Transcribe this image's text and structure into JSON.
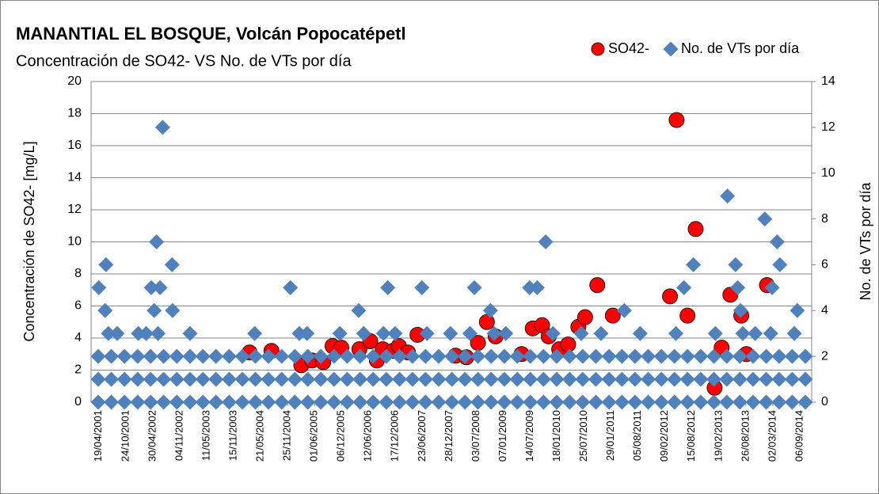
{
  "chart_data": {
    "type": "scatter",
    "title": "MANANTIAL EL BOSQUE, Volcán Popocatépetl",
    "subtitle": "Concentración de SO42- VS No. de VTs por día",
    "y_label": "Concentración de SO42-  [mg/L]",
    "y2_label": "No. de VTs por día",
    "xlim": [
      "24/02/2001",
      "28/11/2014"
    ],
    "xticks": [
      "19/04/2001",
      "24/10/2001",
      "30/04/2002",
      "04/11/2002",
      "11/05/2003",
      "15/11/2003",
      "21/05/2004",
      "25/11/2004",
      "01/06/2005",
      "06/12/2005",
      "12/06/2006",
      "17/12/2006",
      "23/06/2007",
      "28/12/2007",
      "03/07/2008",
      "07/01/2009",
      "14/07/2009",
      "18/01/2010",
      "25/07/2010",
      "29/01/2011",
      "05/08/2011",
      "09/02/2012",
      "15/08/2012",
      "19/02/2013",
      "26/08/2013",
      "02/03/2014",
      "06/09/2014"
    ],
    "ylim": [
      0,
      20
    ],
    "yticks": [
      0,
      2,
      4,
      6,
      8,
      10,
      12,
      14,
      16,
      18,
      20
    ],
    "y2lim": [
      0,
      14
    ],
    "y2ticks": [
      0,
      2,
      4,
      6,
      8,
      10,
      12,
      14
    ],
    "grid": true,
    "legend": "top-right",
    "series": [
      {
        "name": "SO42-",
        "color": "#ff0000",
        "marker": "circle",
        "x": [
          "05/03/2004",
          "05/08/2004",
          "01/03/2005",
          "15/05/2005",
          "01/08/2005",
          "05/10/2005",
          "05/12/2005",
          "10/04/2006",
          "25/06/2006",
          "10/08/2006",
          "20/09/2006",
          "30/11/2006",
          "10/01/2007",
          "15/03/2007",
          "20/05/2007",
          "10/02/2008",
          "25/04/2008",
          "15/07/2008",
          "15/09/2008",
          "15/11/2008",
          "15/05/2009",
          "01/08/2009",
          "05/10/2009",
          "20/11/2009",
          "01/02/2010",
          "05/04/2010",
          "15/06/2010",
          "01/08/2010",
          "25/10/2010",
          "10/02/2011",
          "15/03/2012",
          "30/04/2012",
          "15/07/2012",
          "10/09/2012",
          "20/01/2013",
          "10/03/2013",
          "10/05/2013",
          "25/07/2013",
          "30/08/2013",
          "20/01/2014"
        ],
        "values": [
          3.1,
          3.2,
          2.3,
          2.6,
          2.5,
          3.5,
          3.4,
          3.3,
          3.8,
          2.6,
          3.3,
          3.2,
          3.5,
          3.1,
          4.2,
          2.9,
          2.8,
          3.7,
          5.0,
          4.1,
          3.0,
          4.6,
          4.8,
          4.1,
          3.3,
          3.6,
          4.7,
          5.3,
          7.3,
          5.4,
          6.6,
          17.6,
          5.4,
          10.8,
          0.9,
          3.4,
          6.7,
          5.4,
          3.0,
          7.3
        ]
      },
      {
        "name": "No. de VTs por día",
        "color": "#4f81bd",
        "marker": "diamond",
        "axis": "y2",
        "x": [
          "15/04/2001",
          "15/07/2001",
          "15/10/2001",
          "15/01/2002",
          "15/04/2002",
          "15/07/2002",
          "15/10/2002",
          "15/01/2003",
          "15/04/2003",
          "15/07/2003",
          "15/10/2003",
          "15/01/2004",
          "15/04/2004",
          "15/07/2004",
          "15/10/2004",
          "15/01/2005",
          "15/04/2005",
          "15/07/2005",
          "15/10/2005",
          "15/01/2006",
          "15/04/2006",
          "15/07/2006",
          "15/10/2006",
          "15/01/2007",
          "15/04/2007",
          "15/07/2007",
          "15/10/2007",
          "15/01/2008",
          "15/04/2008",
          "15/07/2008",
          "15/10/2008",
          "15/01/2009",
          "15/04/2009",
          "15/07/2009",
          "15/10/2009",
          "15/01/2010",
          "15/04/2010",
          "15/07/2010",
          "15/10/2010",
          "15/01/2011",
          "15/04/2011",
          "15/07/2011",
          "15/10/2011",
          "15/01/2012",
          "15/04/2012",
          "15/07/2012",
          "15/10/2012",
          "15/01/2013",
          "15/04/2013",
          "15/07/2013",
          "15/10/2013",
          "15/01/2014",
          "15/04/2014",
          "15/07/2014",
          "15/10/2014",
          "15/04/2001",
          "15/07/2001",
          "15/10/2001",
          "15/01/2002",
          "15/04/2002",
          "15/07/2002",
          "15/10/2002",
          "15/01/2003",
          "15/04/2003",
          "15/07/2003",
          "15/10/2003",
          "15/01/2004",
          "15/04/2004",
          "15/07/2004",
          "15/10/2004",
          "15/01/2005",
          "15/04/2005",
          "15/07/2005",
          "15/10/2005",
          "15/01/2006",
          "15/04/2006",
          "15/07/2006",
          "15/10/2006",
          "15/01/2007",
          "15/04/2007",
          "15/07/2007",
          "15/10/2007",
          "15/01/2008",
          "15/04/2008",
          "15/07/2008",
          "15/10/2008",
          "15/01/2009",
          "15/04/2009",
          "15/07/2009",
          "15/10/2009",
          "15/01/2010",
          "15/04/2010",
          "15/07/2010",
          "15/10/2010",
          "15/01/2011",
          "15/04/2011",
          "15/07/2011",
          "15/10/2011",
          "15/01/2012",
          "15/04/2012",
          "15/07/2012",
          "15/10/2012",
          "15/01/2013",
          "15/04/2013",
          "15/07/2013",
          "15/10/2013",
          "15/01/2014",
          "15/04/2014",
          "15/07/2014",
          "15/10/2014",
          "15/04/2001",
          "15/07/2001",
          "15/10/2001",
          "15/01/2002",
          "15/04/2002",
          "15/07/2002",
          "15/10/2002",
          "15/01/2003",
          "15/04/2003",
          "15/07/2003",
          "15/10/2003",
          "15/01/2004",
          "15/04/2004",
          "15/07/2004",
          "15/10/2004",
          "15/01/2005",
          "15/04/2005",
          "15/07/2005",
          "15/10/2005",
          "15/01/2006",
          "15/04/2006",
          "15/07/2006",
          "15/10/2006",
          "15/01/2007",
          "15/04/2007",
          "15/07/2007",
          "15/10/2007",
          "15/01/2008",
          "15/04/2008",
          "15/07/2008",
          "15/10/2008",
          "15/01/2009",
          "15/04/2009",
          "15/07/2009",
          "15/10/2009",
          "15/01/2010",
          "15/04/2010",
          "15/07/2010",
          "15/10/2010",
          "15/01/2011",
          "15/04/2011",
          "15/07/2011",
          "15/10/2011",
          "15/01/2012",
          "15/04/2012",
          "15/07/2012",
          "15/10/2012",
          "15/01/2013",
          "15/04/2013",
          "15/07/2013",
          "15/10/2013",
          "15/01/2014",
          "15/04/2014",
          "15/07/2014",
          "15/10/2014",
          "25/06/2001",
          "25/08/2001",
          "20/01/2002",
          "15/03/2002",
          "06/06/2002",
          "15/01/2003",
          "10/04/2004",
          "15/02/2005",
          "10/04/2005",
          "25/11/2005",
          "10/05/2006",
          "25/09/2006",
          "15/12/2006",
          "25/07/2007",
          "05/01/2008",
          "20/05/2008",
          "05/11/2008",
          "25/01/2009",
          "20/12/2009",
          "05/07/2010",
          "20/11/2010",
          "20/08/2011",
          "25/04/2012",
          "25/01/2013",
          "05/08/2013",
          "30/10/2013",
          "15/02/2014",
          "30/07/2014",
          "08/07/2002",
          "26/05/2002",
          "08/06/2001",
          "12/09/2002",
          "19/04/2001",
          "20/04/2002",
          "20/06/2002",
          "02/06/2001",
          "10/05/2002",
          "15/09/2002",
          "15/12/2004",
          "05/04/2006",
          "25/10/2006",
          "20/06/2007",
          "20/06/2008",
          "10/10/2008",
          "10/07/2009",
          "01/09/2009",
          "30/10/2009",
          "01/05/2011",
          "20/06/2012",
          "25/08/2012",
          "20/04/2013",
          "15/06/2013",
          "30/06/2013",
          "20/07/2013",
          "05/01/2014",
          "01/04/2014",
          "20/04/2014",
          "25/02/2014",
          "20/08/2014"
        ],
        "values": [
          0,
          0,
          0,
          0,
          0,
          0,
          0,
          0,
          0,
          0,
          0,
          0,
          0,
          0,
          0,
          0,
          0,
          0,
          0,
          0,
          0,
          0,
          0,
          0,
          0,
          0,
          0,
          0,
          0,
          0,
          0,
          0,
          0,
          0,
          0,
          0,
          0,
          0,
          0,
          0,
          0,
          0,
          0,
          0,
          0,
          0,
          0,
          0,
          0,
          0,
          0,
          0,
          0,
          0,
          0,
          1,
          1,
          1,
          1,
          1,
          1,
          1,
          1,
          1,
          1,
          1,
          1,
          1,
          1,
          1,
          1,
          1,
          1,
          1,
          1,
          1,
          1,
          1,
          1,
          1,
          1,
          1,
          1,
          1,
          1,
          1,
          1,
          1,
          1,
          1,
          1,
          1,
          1,
          1,
          1,
          1,
          1,
          1,
          1,
          1,
          1,
          1,
          1,
          1,
          1,
          1,
          1,
          1,
          1,
          1,
          2,
          2,
          2,
          2,
          2,
          2,
          2,
          2,
          2,
          2,
          2,
          2,
          2,
          2,
          2,
          2,
          2,
          2,
          2,
          2,
          2,
          2,
          2,
          2,
          2,
          2,
          2,
          2,
          2,
          2,
          2,
          2,
          2,
          2,
          2,
          2,
          2,
          2,
          2,
          2,
          2,
          2,
          2,
          2,
          2,
          2,
          2,
          2,
          2,
          2,
          2,
          2,
          2,
          2,
          2,
          3,
          3,
          3,
          3,
          3,
          3,
          3,
          3,
          3,
          3,
          3,
          3,
          3,
          3,
          3,
          3,
          3,
          3,
          3,
          3,
          3,
          3,
          3,
          3,
          3,
          3,
          3,
          3,
          12,
          7,
          6,
          6,
          5,
          5,
          5,
          4,
          4,
          4,
          5,
          4,
          5,
          5,
          5,
          4,
          5,
          5,
          7,
          4,
          5,
          6,
          9,
          6,
          5,
          4,
          8,
          7,
          6,
          5,
          4
        ]
      }
    ]
  }
}
